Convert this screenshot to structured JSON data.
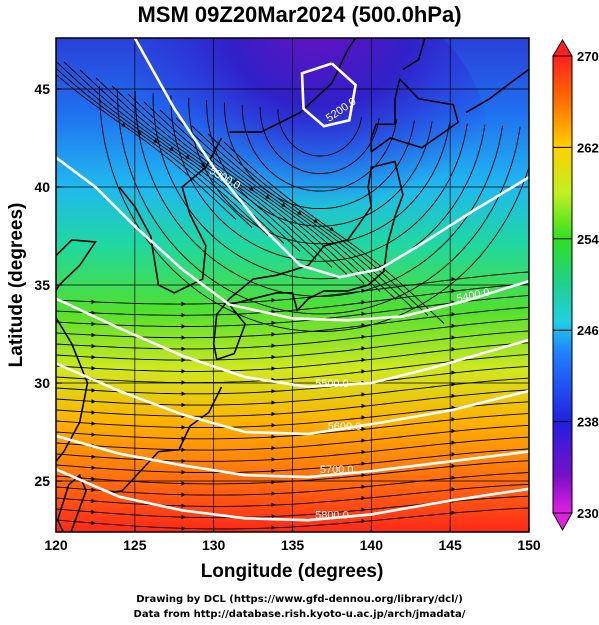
{
  "title": "MSM 09Z20Mar2024 (500.0hPa)",
  "x_axis": {
    "label": "Longitude (degrees)",
    "ticks": [
      {
        "value": 120,
        "label": "120"
      },
      {
        "value": 125,
        "label": "125"
      },
      {
        "value": 130,
        "label": "130"
      },
      {
        "value": 135,
        "label": "135"
      },
      {
        "value": 140,
        "label": "140"
      },
      {
        "value": 145,
        "label": "145"
      },
      {
        "value": 150,
        "label": "150"
      }
    ],
    "range": [
      120,
      150
    ]
  },
  "y_axis": {
    "label": "Latitude (degrees)",
    "ticks": [
      {
        "value": 25,
        "label": "25"
      },
      {
        "value": 30,
        "label": "30"
      },
      {
        "value": 35,
        "label": "35"
      },
      {
        "value": 40,
        "label": "40"
      },
      {
        "value": 45,
        "label": "45"
      }
    ],
    "range": [
      22.4,
      47.6
    ]
  },
  "colorbar": {
    "min": 230,
    "max": 270,
    "ticks": [
      {
        "value": 270,
        "label": "270"
      },
      {
        "value": 262,
        "label": "262"
      },
      {
        "value": 254,
        "label": "254"
      },
      {
        "value": 246,
        "label": "246"
      },
      {
        "value": 238,
        "label": "238"
      },
      {
        "value": 230,
        "label": "230"
      }
    ]
  },
  "contours": [
    {
      "label": "5200.0"
    },
    {
      "label": "5300.0"
    },
    {
      "label": "5400.0"
    },
    {
      "label": "5500.0"
    },
    {
      "label": "5600.0"
    },
    {
      "label": "5700.0"
    },
    {
      "label": "5800.0"
    }
  ],
  "credits": {
    "line1": "Drawing by DCL (https://www.gfd-dennou.org/library/dcl/)",
    "line2": "Data from http://database.rish.kyoto-u.ac.jp/arch/jmadata/"
  }
}
